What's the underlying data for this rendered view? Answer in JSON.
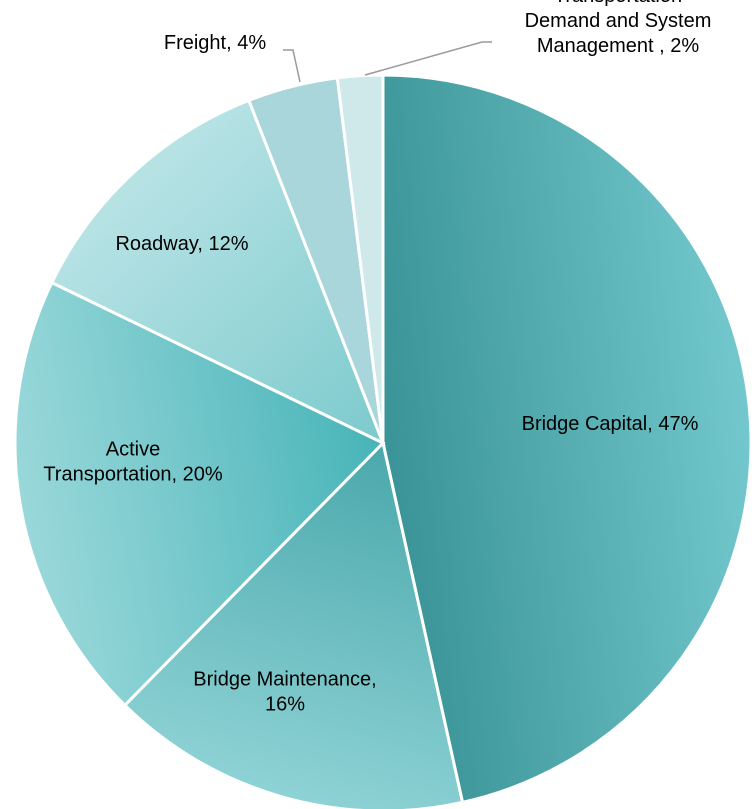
{
  "chart_data": {
    "type": "pie",
    "title": "",
    "slices": [
      {
        "name": "Bridge Capital",
        "value": 47,
        "label": [
          "Bridge Capital, 47%"
        ],
        "color_light": "#72c8cc",
        "color_dark": "#3a9396"
      },
      {
        "name": "Bridge Maintenance",
        "value": 16,
        "label": [
          "Bridge Maintenance,",
          "16%"
        ],
        "color_light": "#8ed2d5",
        "color_dark": "#4aa8ab"
      },
      {
        "name": "Active Transportation",
        "value": 20,
        "label": [
          "Active",
          "Transportation, 20%"
        ],
        "color_light": "#9ad8da",
        "color_dark": "#47b4b8"
      },
      {
        "name": "Roadway",
        "value": 12,
        "label": [
          "Roadway, 12%"
        ],
        "color_light": "#b8e3e5",
        "color_dark": "#7ccacd"
      },
      {
        "name": "Freight",
        "value": 4,
        "label": [
          "Freight, 4%"
        ],
        "color_light": "#a9d6da",
        "color_dark": "#a9d6da"
      },
      {
        "name": "Transportation Demand and System Management",
        "value": 2,
        "label": [
          "Transportation",
          "Demand and System",
          "Management , 2%"
        ],
        "color_light": "#cfe9eb",
        "color_dark": "#cfe9eb"
      }
    ],
    "legend": "none",
    "data_labels": "category name and percentage"
  }
}
